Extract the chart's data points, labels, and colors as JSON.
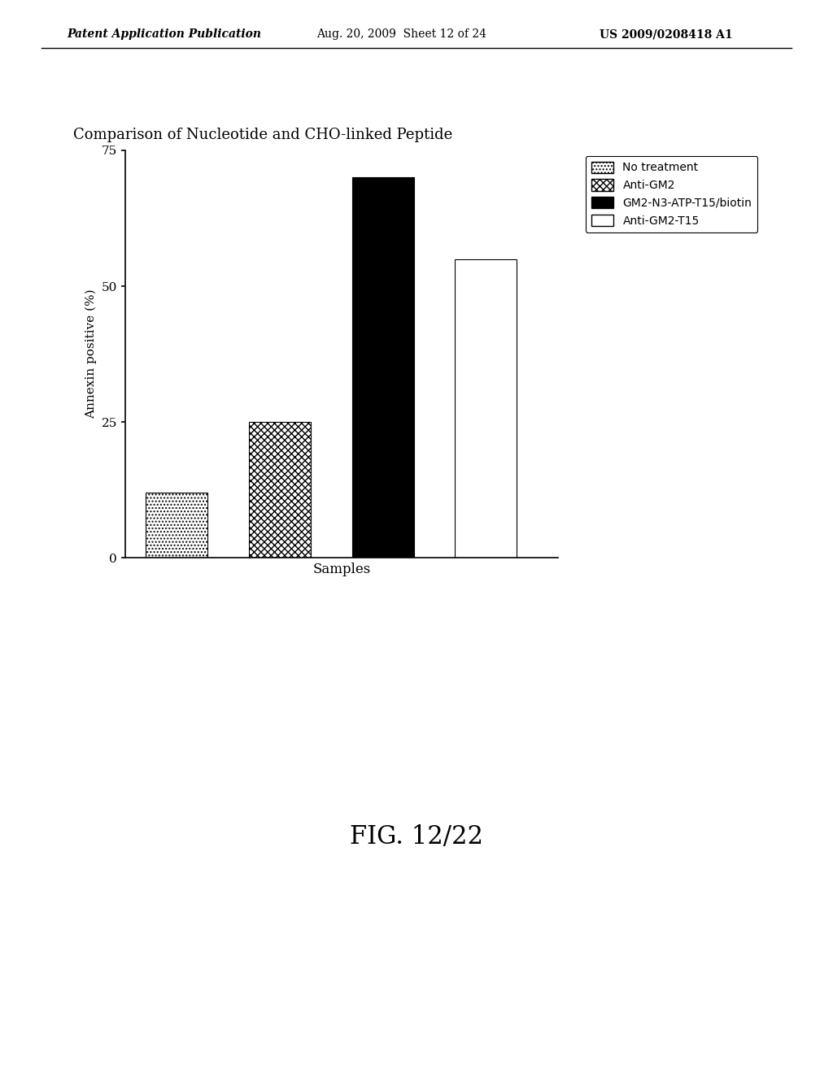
{
  "title": "Comparison of Nucleotide and CHO-linked Peptide",
  "xlabel": "Samples",
  "ylabel": "Annexin positive (%)",
  "ylim": [
    0,
    75
  ],
  "yticks": [
    0,
    25,
    50,
    75
  ],
  "values": [
    12,
    25,
    70,
    55
  ],
  "bar_positions": [
    1,
    2,
    3,
    4
  ],
  "bar_width": 0.6,
  "legend_labels": [
    "No treatment",
    "Anti-GM2",
    "GM2-N3-ATP-T15/biotin",
    "Anti-GM2-T15"
  ],
  "header_left": "Patent Application Publication",
  "header_mid": "Aug. 20, 2009  Sheet 12 of 24",
  "header_right": "US 2009/0208418 A1",
  "figure_label": "FIG. 12/22",
  "background_color": "#ffffff"
}
